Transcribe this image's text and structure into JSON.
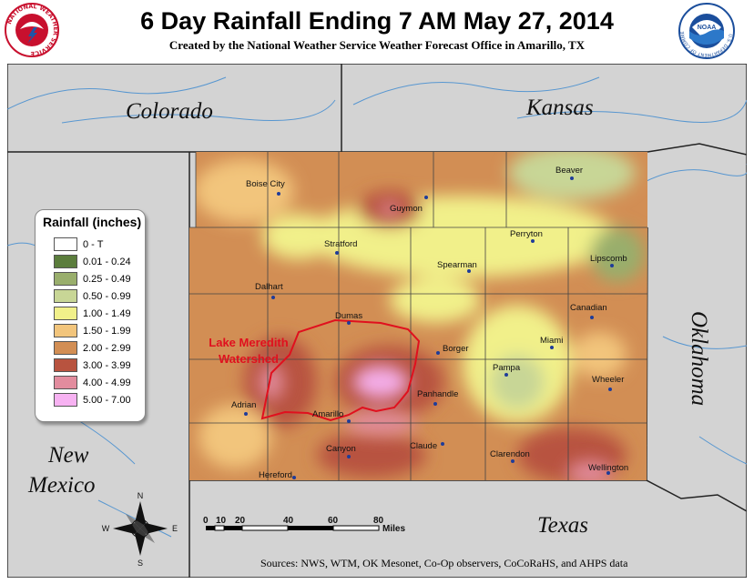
{
  "header": {
    "title": "6 Day Rainfall Ending 7 AM May 27, 2014",
    "subtitle": "Created by the National Weather Service Weather Forecast Office in Amarillo, TX"
  },
  "logos": {
    "nws_text": "NATIONAL WEATHER SERVICE",
    "noaa_text": "NOAA",
    "noaa_ring": "U.S. DEPARTMENT OF COMMERCE"
  },
  "states": {
    "colorado": "Colorado",
    "kansas": "Kansas",
    "oklahoma": "Oklahoma",
    "new_mexico_1": "New",
    "new_mexico_2": "Mexico",
    "texas": "Texas"
  },
  "cities": [
    {
      "name": "Boise City"
    },
    {
      "name": "Guymon"
    },
    {
      "name": "Beaver"
    },
    {
      "name": "Stratford"
    },
    {
      "name": "Perryton"
    },
    {
      "name": "Spearman"
    },
    {
      "name": "Lipscomb"
    },
    {
      "name": "Dalhart"
    },
    {
      "name": "Dumas"
    },
    {
      "name": "Canadian"
    },
    {
      "name": "Borger"
    },
    {
      "name": "Miami"
    },
    {
      "name": "Pampa"
    },
    {
      "name": "Wheeler"
    },
    {
      "name": "Panhandle"
    },
    {
      "name": "Adrian"
    },
    {
      "name": "Amarillo"
    },
    {
      "name": "Claude"
    },
    {
      "name": "Clarendon"
    },
    {
      "name": "Canyon"
    },
    {
      "name": "Wellington"
    },
    {
      "name": "Hereford"
    }
  ],
  "watershed": {
    "label_1": "Lake Meredith",
    "label_2": "Watershed",
    "color": "#e0101e"
  },
  "legend": {
    "title": "Rainfall (inches)",
    "items": [
      {
        "label": "0 - T",
        "color": "#ffffff"
      },
      {
        "label": "0.01 - 0.24",
        "color": "#5b7d3c"
      },
      {
        "label": "0.25 - 0.49",
        "color": "#99ae6c"
      },
      {
        "label": "0.50 - 0.99",
        "color": "#c8d696"
      },
      {
        "label": "1.00 - 1.49",
        "color": "#f1f08a"
      },
      {
        "label": "1.50 - 1.99",
        "color": "#f2c57c"
      },
      {
        "label": "2.00 - 2.99",
        "color": "#d28e54"
      },
      {
        "label": "3.00 - 3.99",
        "color": "#b8533f"
      },
      {
        "label": "4.00 - 4.99",
        "color": "#e28c9e"
      },
      {
        "label": "5.00 - 7.00",
        "color": "#f7b2f2"
      }
    ]
  },
  "compass": {
    "n": "N",
    "s": "S",
    "e": "E",
    "w": "W"
  },
  "scale": {
    "ticks": [
      "0",
      "10",
      "20",
      "40",
      "60",
      "80"
    ],
    "unit": "Miles"
  },
  "sources": "Sources:  NWS, WTM, OK Mesonet, Co-Op observers, CoCoRaHS, and AHPS data"
}
